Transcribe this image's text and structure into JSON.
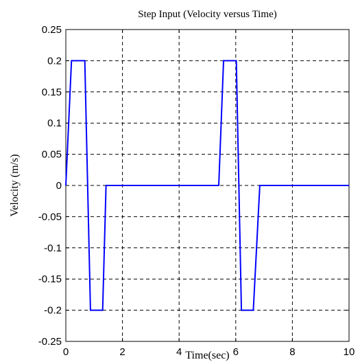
{
  "chart_data": {
    "type": "line",
    "title": "Step Input (Velocity versus Time)",
    "xlabel": "Time(sec)",
    "ylabel": "Velocity (m/s)",
    "xlim": [
      0,
      10
    ],
    "ylim": [
      -0.25,
      0.25
    ],
    "grid": true,
    "x_ticks": [
      0,
      2,
      4,
      6,
      8,
      10
    ],
    "x_tick_labels": [
      "0",
      "2",
      "4",
      "6",
      "8",
      "10"
    ],
    "y_ticks": [
      0.25,
      0.2,
      0.15,
      0.1,
      0.05,
      0,
      -0.05,
      -0.1,
      -0.15,
      -0.2,
      -0.25
    ],
    "y_tick_labels": [
      "0.25",
      "0.2",
      "0.15",
      "0.1",
      "0.05",
      "0",
      "-0.05",
      "-0.1",
      "-0.15",
      "-0.2",
      "-0.25"
    ],
    "series": [
      {
        "color": "#0000ff",
        "x": [
          0,
          0.2,
          0.67,
          0.87,
          1.3,
          1.42,
          5.4,
          5.57,
          6.02,
          6.2,
          6.62,
          6.85,
          10
        ],
        "y": [
          0,
          0.2,
          0.2,
          -0.2,
          -0.2,
          0,
          0,
          0.2,
          0.2,
          -0.2,
          -0.2,
          0,
          0
        ]
      }
    ]
  }
}
